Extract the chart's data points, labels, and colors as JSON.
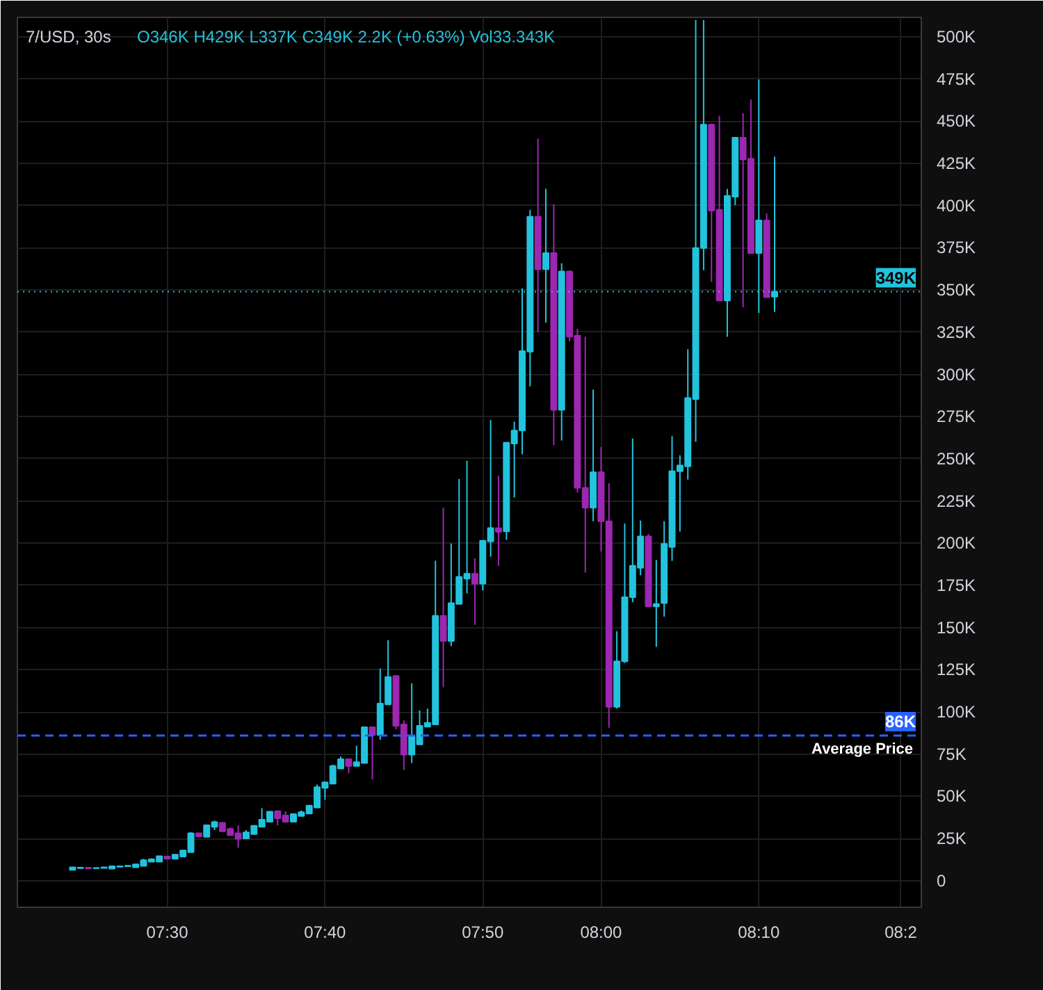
{
  "chart_data": {
    "type": "candlestick",
    "title": "7/USD, 30s",
    "subtitle": "O346K H429K L337K C349K 2.2K (+0.63%) Vol33.343K",
    "categories": [
      null,
      null,
      null,
      null,
      null,
      null,
      null,
      null,
      null,
      null,
      null,
      null,
      "07:30",
      null,
      null,
      null,
      null,
      null,
      null,
      null,
      null,
      null,
      null,
      null,
      null,
      null,
      null,
      null,
      null,
      null,
      null,
      null,
      "07:40",
      null,
      null,
      null,
      null,
      null,
      null,
      null,
      null,
      null,
      null,
      null,
      null,
      null,
      null,
      null,
      null,
      null,
      null,
      null,
      "07:50",
      null,
      null,
      null,
      null,
      null,
      null,
      null,
      null,
      null,
      null,
      null,
      null,
      null,
      null,
      "08:00",
      null,
      null,
      null,
      null,
      null,
      null,
      null,
      null,
      null,
      null,
      null,
      null,
      null,
      null,
      null,
      null,
      null,
      null,
      null,
      "08:10",
      null,
      null,
      null,
      null,
      null,
      null,
      null,
      null,
      null,
      null,
      null,
      null,
      null,
      null,
      null,
      null,
      null,
      "08:2"
    ],
    "ohlc": [
      [
        6.4,
        8,
        6.4,
        8
      ],
      [
        7.5,
        8,
        7.3,
        7.8
      ],
      [
        7.8,
        7.8,
        7.2,
        7.4
      ],
      [
        7.4,
        7.8,
        7.4,
        7.6
      ],
      [
        7.6,
        8.2,
        7.6,
        8
      ],
      [
        7.2,
        8.8,
        7.2,
        8.6
      ],
      [
        8.3,
        8.8,
        8.3,
        8.6
      ],
      [
        8.6,
        9,
        8.6,
        8.9
      ],
      [
        8,
        9.8,
        8,
        9.7
      ],
      [
        8.8,
        13,
        8.8,
        12.2
      ],
      [
        11.3,
        13.3,
        11.3,
        12.7
      ],
      [
        11.3,
        14.8,
        11.3,
        14.6
      ],
      [
        14.4,
        14.6,
        13,
        13
      ],
      [
        13,
        15.7,
        13,
        15.5
      ],
      [
        14.4,
        18.2,
        14.4,
        18
      ],
      [
        16.9,
        28.8,
        16.9,
        28.2
      ],
      [
        28.2,
        28.4,
        26.2,
        26.2
      ],
      [
        26,
        33,
        26,
        32.9
      ],
      [
        32,
        35.6,
        30,
        34.8
      ],
      [
        34.3,
        34.5,
        29.3,
        29.3
      ],
      [
        30.7,
        31.5,
        27,
        27
      ],
      [
        28.2,
        32.9,
        19.6,
        24.9
      ],
      [
        25.1,
        30,
        24.9,
        28.7
      ],
      [
        27.6,
        32.8,
        27.6,
        32.6
      ],
      [
        32,
        43,
        32,
        36.2
      ],
      [
        35,
        41,
        35,
        40.9
      ],
      [
        41.2,
        41.5,
        32.9,
        37
      ],
      [
        38.7,
        41.2,
        35,
        35
      ],
      [
        35,
        40,
        35,
        39.5
      ],
      [
        38.4,
        41.7,
        38.4,
        40.6
      ],
      [
        39.8,
        44.6,
        39.8,
        44.5
      ],
      [
        43.4,
        57,
        43,
        55.5
      ],
      [
        55,
        58.5,
        48,
        58.3
      ],
      [
        57.5,
        68.8,
        57.5,
        68
      ],
      [
        66.5,
        73.6,
        66.5,
        72
      ],
      [
        72,
        72.3,
        63.7,
        68
      ],
      [
        68,
        80,
        68,
        70.3
      ],
      [
        69.8,
        91.3,
        69.8,
        91
      ],
      [
        91,
        91.3,
        60,
        86.3
      ],
      [
        86.3,
        125.7,
        83.5,
        105
      ],
      [
        104.5,
        142.5,
        104.5,
        120.7
      ],
      [
        121.3,
        121.5,
        89.6,
        91.8
      ],
      [
        92.6,
        95,
        65.6,
        74.7
      ],
      [
        74.7,
        117,
        69.8,
        85.7
      ],
      [
        80.8,
        100.9,
        80.8,
        91.8
      ],
      [
        91.3,
        102,
        91.3,
        93.5
      ],
      [
        92.6,
        189.6,
        92.6,
        157
      ],
      [
        157,
        221,
        114.7,
        142
      ],
      [
        142,
        199.8,
        139,
        164.5
      ],
      [
        164,
        238,
        164,
        180
      ],
      [
        179,
        248.8,
        170.3,
        181.9
      ],
      [
        181.9,
        191,
        151.6,
        176
      ],
      [
        176,
        201.5,
        172,
        201.5
      ],
      [
        201,
        273,
        192,
        209
      ],
      [
        208.9,
        240,
        186.6,
        206.7
      ],
      [
        207,
        259.5,
        202,
        259.5
      ],
      [
        259,
        272,
        227,
        266.7
      ],
      [
        266.7,
        351,
        252.7,
        313.8
      ],
      [
        313.5,
        397.5,
        292.9,
        393.4
      ],
      [
        393.4,
        439.7,
        325,
        362.3
      ],
      [
        362.3,
        410,
        330.6,
        371.9
      ],
      [
        371.9,
        400.8,
        258,
        279
      ],
      [
        279,
        365.8,
        260.8,
        361
      ],
      [
        361,
        361.5,
        319.6,
        322.3
      ],
      [
        323,
        327,
        230,
        232.8
      ],
      [
        232.8,
        322.3,
        182.6,
        221
      ],
      [
        221,
        291,
        213,
        242
      ],
      [
        242,
        257,
        195,
        213
      ],
      [
        213,
        235.5,
        90.7,
        103
      ],
      [
        103,
        147.8,
        102,
        130
      ],
      [
        130,
        211.6,
        129,
        168
      ],
      [
        168,
        262,
        165,
        186.6
      ],
      [
        185.4,
        213.4,
        181,
        204
      ],
      [
        204,
        205.5,
        162.5,
        162.5
      ],
      [
        162.5,
        190,
        138.6,
        164
      ],
      [
        164.5,
        213,
        156.5,
        199.6
      ],
      [
        197.8,
        263.4,
        189.5,
        242.7
      ],
      [
        242.7,
        252,
        206.9,
        246
      ],
      [
        245.5,
        314.9,
        237.7,
        286
      ],
      [
        285.4,
        510,
        260,
        374.9
      ],
      [
        374.9,
        510,
        361.7,
        448
      ],
      [
        448,
        448.5,
        354.8,
        397
      ],
      [
        397.5,
        453.2,
        343.8,
        343.8
      ],
      [
        343.8,
        409.9,
        322.3,
        405.8
      ],
      [
        405.2,
        440.2,
        400.3,
        440.2
      ],
      [
        440.2,
        454.8,
        339.7,
        427.3
      ],
      [
        427.8,
        462.8,
        371.9,
        371.9
      ],
      [
        371.9,
        474.7,
        336.4,
        391.2
      ],
      [
        391.2,
        395.3,
        345.7,
        345.7
      ],
      [
        346,
        429,
        337,
        349
      ],
      null,
      null,
      null,
      null,
      null,
      null,
      null,
      null,
      null,
      null,
      null,
      null,
      null,
      null,
      null,
      null
    ],
    "colors": [
      "#22c3dd",
      "#22c3dd",
      "#9c27b0",
      "#22c3dd",
      "#22c3dd",
      "#22c3dd",
      "#22c3dd",
      "#22c3dd",
      "#22c3dd",
      "#22c3dd",
      "#22c3dd",
      "#22c3dd",
      "#9c27b0",
      "#22c3dd",
      "#22c3dd",
      "#22c3dd",
      "#9c27b0",
      "#22c3dd",
      "#22c3dd",
      "#9c27b0",
      "#9c27b0",
      "#9c27b0",
      "#22c3dd",
      "#22c3dd",
      "#22c3dd",
      "#22c3dd",
      "#9c27b0",
      "#9c27b0",
      "#22c3dd",
      "#22c3dd",
      "#22c3dd",
      "#22c3dd",
      "#22c3dd",
      "#22c3dd",
      "#22c3dd",
      "#9c27b0",
      "#22c3dd",
      "#22c3dd",
      "#9c27b0",
      "#22c3dd",
      "#22c3dd",
      "#9c27b0",
      "#9c27b0",
      "#22c3dd",
      "#22c3dd",
      "#22c3dd",
      "#22c3dd",
      "#9c27b0",
      "#22c3dd",
      "#22c3dd",
      "#22c3dd",
      "#9c27b0",
      "#22c3dd",
      "#22c3dd",
      "#9c27b0",
      "#22c3dd",
      "#22c3dd",
      "#22c3dd",
      "#22c3dd",
      "#9c27b0",
      "#22c3dd",
      "#9c27b0",
      "#22c3dd",
      "#9c27b0",
      "#9c27b0",
      "#9c27b0",
      "#22c3dd",
      "#9c27b0",
      "#9c27b0",
      "#22c3dd",
      "#22c3dd",
      "#22c3dd",
      "#22c3dd",
      "#9c27b0",
      "#22c3dd",
      "#22c3dd",
      "#22c3dd",
      "#22c3dd",
      "#22c3dd",
      "#22c3dd",
      "#22c3dd",
      "#9c27b0",
      "#9c27b0",
      "#22c3dd",
      "#22c3dd",
      "#9c27b0",
      "#9c27b0",
      "#22c3dd",
      "#9c27b0",
      "#22c3dd",
      null,
      null,
      null,
      null,
      null,
      null,
      null,
      null,
      null,
      null,
      null,
      null,
      null,
      null,
      null,
      null
    ],
    "ylim": [
      -15.7,
      511.5
    ],
    "yticks": [
      {
        "value": 0,
        "label": "0"
      },
      {
        "value": 25,
        "label": "25K"
      },
      {
        "value": 50,
        "label": "50K"
      },
      {
        "value": 75,
        "label": "75K"
      },
      {
        "value": 100,
        "label": "100K"
      },
      {
        "value": 125,
        "label": "125K"
      },
      {
        "value": 150,
        "label": "150K"
      },
      {
        "value": 175,
        "label": "175K"
      },
      {
        "value": 200,
        "label": "200K"
      },
      {
        "value": 225,
        "label": "225K"
      },
      {
        "value": 250,
        "label": "250K"
      },
      {
        "value": 275,
        "label": "275K"
      },
      {
        "value": 300,
        "label": "300K"
      },
      {
        "value": 325,
        "label": "325K"
      },
      {
        "value": 350,
        "label": "350K"
      },
      {
        "value": 375,
        "label": "375K"
      },
      {
        "value": 400,
        "label": "400K"
      },
      {
        "value": 425,
        "label": "425K"
      },
      {
        "value": 450,
        "label": "450K"
      },
      {
        "value": 475,
        "label": "475K"
      },
      {
        "value": 500,
        "label": "500K"
      }
    ],
    "grid": true,
    "ref_lines": [
      {
        "axis": "y",
        "value": 349,
        "label": "349K",
        "color": "#22c3dd",
        "line_style": "dotted"
      },
      {
        "axis": "y",
        "value": 86,
        "label": "Average Price",
        "color": "#2962ff",
        "line_style": "dashed"
      }
    ],
    "annotations": [
      "86K"
    ]
  }
}
